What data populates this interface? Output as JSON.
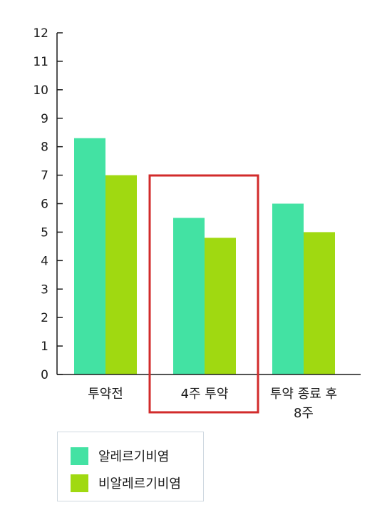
{
  "chart_data": {
    "type": "bar",
    "categories": [
      "투약전",
      "4주 투약",
      "투약 종료 후 8주"
    ],
    "category_label_lines": [
      [
        "투약전"
      ],
      [
        "4주 투약"
      ],
      [
        "투약 종료 후",
        "8주"
      ]
    ],
    "series": [
      {
        "name": "알레르기비염",
        "values": [
          8.3,
          5.5,
          6.0
        ],
        "color": "#43e2a3"
      },
      {
        "name": "비알레르기비염",
        "values": [
          7.0,
          4.8,
          5.0
        ],
        "color": "#a0d911"
      }
    ],
    "ylim": [
      0,
      12
    ],
    "yticks": [
      0,
      1,
      2,
      3,
      4,
      5,
      6,
      7,
      8,
      9,
      10,
      11,
      12
    ],
    "legend_position": "bottom-left",
    "highlight": {
      "category": "4주 투약",
      "color": "#d22b2b"
    }
  }
}
